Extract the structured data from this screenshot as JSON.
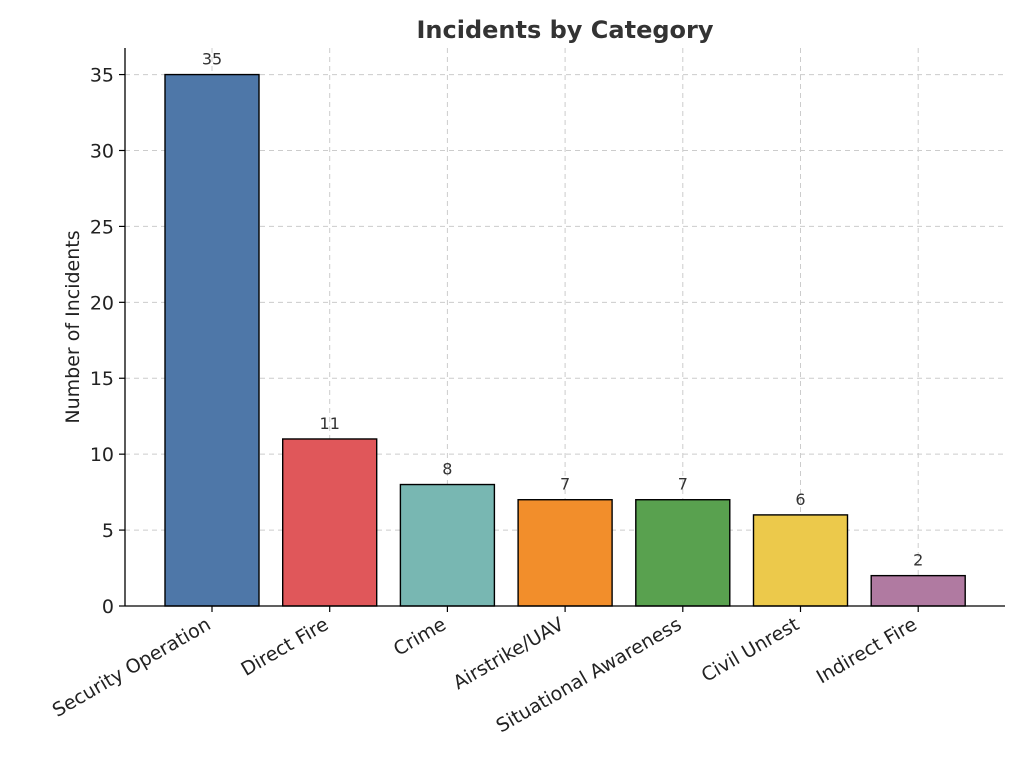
{
  "chart_data": {
    "type": "bar",
    "title": "Incidents by Category",
    "xlabel": "",
    "ylabel": "Number of Incidents",
    "categories": [
      "Security Operation",
      "Direct Fire",
      "Crime",
      "Airstrike/UAV",
      "Situational Awareness",
      "Civil Unrest",
      "Indirect Fire"
    ],
    "values": [
      35,
      11,
      8,
      7,
      7,
      6,
      2
    ],
    "data_labels": [
      "35",
      "11",
      "8",
      "7",
      "7",
      "6",
      "2"
    ],
    "colors": [
      "#4e77a8",
      "#e0575a",
      "#78b7b2",
      "#f28e2b",
      "#59a14f",
      "#ecc94b",
      "#b07aa1"
    ],
    "yticks": [
      0,
      5,
      10,
      15,
      20,
      25,
      30,
      35
    ],
    "ylim": [
      0,
      36.75
    ],
    "grid": true,
    "legend": "none"
  }
}
